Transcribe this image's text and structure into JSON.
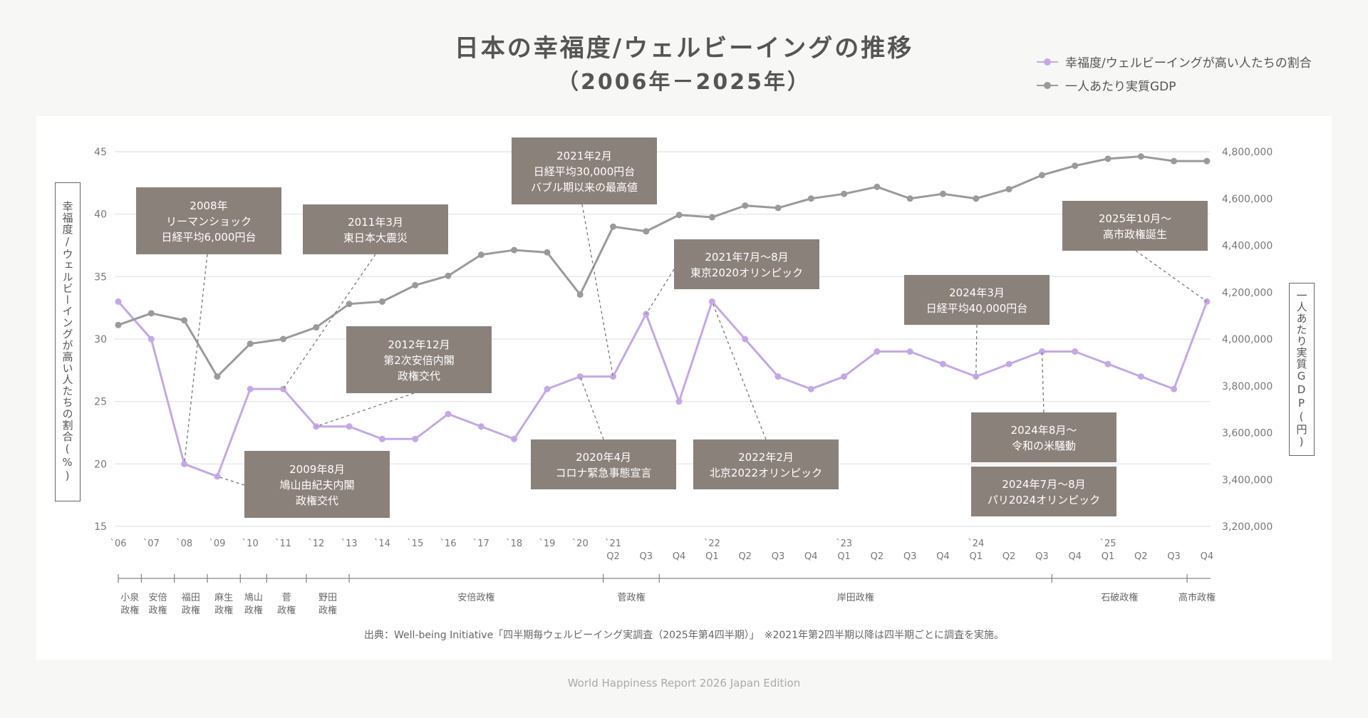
{
  "title": {
    "line1": "日本の幸福度/ウェルビーイングの推移",
    "line2": "（2006年－2025年）"
  },
  "legend": [
    {
      "label": "幸福度/ウェルビーイングが高い人たちの割合",
      "color": "#c4a8e6"
    },
    {
      "label": "一人あたり実質GDP",
      "color": "#9a9a9a"
    }
  ],
  "axis_titles": {
    "left": "幸福度/ウェルビーイングが高い人たちの割合(%)",
    "right": "一人あたり実質GDP(円)"
  },
  "source_note": "出典：Well-being Initiative「四半期毎ウェルビーイング実調査（2025年第4四半期）」　※2021年第2四半期以降は四半期ごとに調査を実施。",
  "footer": "World Happiness Report 2026 Japan Edition",
  "chart_data": {
    "type": "line",
    "categories": [
      {
        "top": "`06",
        "bottom": ""
      },
      {
        "top": "`07",
        "bottom": ""
      },
      {
        "top": "`08",
        "bottom": ""
      },
      {
        "top": "`09",
        "bottom": ""
      },
      {
        "top": "`10",
        "bottom": ""
      },
      {
        "top": "`11",
        "bottom": ""
      },
      {
        "top": "`12",
        "bottom": ""
      },
      {
        "top": "`13",
        "bottom": ""
      },
      {
        "top": "`14",
        "bottom": ""
      },
      {
        "top": "`15",
        "bottom": ""
      },
      {
        "top": "`16",
        "bottom": ""
      },
      {
        "top": "`17",
        "bottom": ""
      },
      {
        "top": "`18",
        "bottom": ""
      },
      {
        "top": "`19",
        "bottom": ""
      },
      {
        "top": "`20",
        "bottom": ""
      },
      {
        "top": "`21",
        "bottom": "Q2"
      },
      {
        "top": "",
        "bottom": "Q3"
      },
      {
        "top": "",
        "bottom": "Q4"
      },
      {
        "top": "`22",
        "bottom": "Q1"
      },
      {
        "top": "",
        "bottom": "Q2"
      },
      {
        "top": "",
        "bottom": "Q3"
      },
      {
        "top": "",
        "bottom": "Q4"
      },
      {
        "top": "`23",
        "bottom": "Q1"
      },
      {
        "top": "",
        "bottom": "Q2"
      },
      {
        "top": "",
        "bottom": "Q3"
      },
      {
        "top": "",
        "bottom": "Q4"
      },
      {
        "top": "`24",
        "bottom": "Q1"
      },
      {
        "top": "",
        "bottom": "Q2"
      },
      {
        "top": "",
        "bottom": "Q3"
      },
      {
        "top": "",
        "bottom": "Q4"
      },
      {
        "top": "`25",
        "bottom": "Q1"
      },
      {
        "top": "",
        "bottom": "Q2"
      },
      {
        "top": "",
        "bottom": "Q3"
      },
      {
        "top": "",
        "bottom": "Q4"
      }
    ],
    "series": [
      {
        "name": "幸福度/ウェルビーイングが高い人たちの割合",
        "axis": "left",
        "color": "#c4a8e6",
        "values": [
          33,
          30,
          20,
          19,
          26,
          26,
          23,
          23,
          22,
          22,
          24,
          23,
          22,
          26,
          27,
          27,
          32,
          25,
          33,
          30,
          27,
          26,
          27,
          29,
          29,
          28,
          27,
          28,
          29,
          29,
          28,
          27,
          26,
          33
        ]
      },
      {
        "name": "一人あたり実質GDP",
        "axis": "right",
        "color": "#9a9a9a",
        "values": [
          4060000,
          4110000,
          4080000,
          3840000,
          3980000,
          4000000,
          4050000,
          4150000,
          4160000,
          4230000,
          4270000,
          4360000,
          4380000,
          4370000,
          4190000,
          4480000,
          4460000,
          4530000,
          4520000,
          4570000,
          4560000,
          4600000,
          4620000,
          4650000,
          4600000,
          4620000,
          4600000,
          4640000,
          4700000,
          4740000,
          4770000,
          4780000,
          4760000,
          4760000
        ]
      }
    ],
    "y_left": {
      "min": 15,
      "max": 45,
      "ticks": [
        "15",
        "20",
        "25",
        "30",
        "35",
        "40",
        "45"
      ]
    },
    "y_right": {
      "min": 3200000,
      "max": 4800000,
      "ticks": [
        "3,200,000",
        "3,400,000",
        "3,600,000",
        "3,800,000",
        "4,000,000",
        "4,200,000",
        "4,400,000",
        "4,600,000",
        "4,800,000"
      ]
    },
    "grid": true,
    "legend_position": "top-right",
    "annotations": [
      {
        "lines": [
          "2008年",
          "リーマンショック",
          "日経平均6,000円台"
        ],
        "target_index": 2,
        "target_series": 0
      },
      {
        "lines": [
          "2011年3月",
          "東日本大震災"
        ],
        "target_index": 5,
        "target_series": 0
      },
      {
        "lines": [
          "2009年8月",
          "鳩山由紀夫内閣",
          "政権交代"
        ],
        "target_index": 3,
        "target_series": 0
      },
      {
        "lines": [
          "2012年12月",
          "第2次安倍内閣",
          "政権交代"
        ],
        "target_index": 6,
        "target_series": 0
      },
      {
        "lines": [
          "2021年2月",
          "日経平均30,000円台",
          "バブル期以来の最高値"
        ],
        "target_index": 15,
        "target_series": 0
      },
      {
        "lines": [
          "2021年7月～8月",
          "東京2020オリンピック"
        ],
        "target_index": 16,
        "target_series": 0
      },
      {
        "lines": [
          "2020年4月",
          "コロナ緊急事態宣言"
        ],
        "target_index": 14,
        "target_series": 0
      },
      {
        "lines": [
          "2022年2月",
          "北京2022オリンピック"
        ],
        "target_index": 18,
        "target_series": 0
      },
      {
        "lines": [
          "2024年3月",
          "日経平均40,000円台"
        ],
        "target_index": 26,
        "target_series": 0
      },
      {
        "lines": [
          "2024年8月～",
          "令和の米騒動"
        ],
        "target_index": 28,
        "target_series": 0
      },
      {
        "lines": [
          "2024年7月～8月",
          "パリ2024オリンピック"
        ],
        "target_index": null,
        "target_series": 0
      },
      {
        "lines": [
          "2025年10月～",
          "高市政権誕生"
        ],
        "target_index": 33,
        "target_series": 0
      }
    ],
    "eras": [
      {
        "lines": [
          "小泉",
          "政権"
        ],
        "start": 0,
        "end": 0.7
      },
      {
        "lines": [
          "安倍",
          "政権"
        ],
        "start": 0.7,
        "end": 1.7
      },
      {
        "lines": [
          "福田",
          "政権"
        ],
        "start": 1.7,
        "end": 2.7
      },
      {
        "lines": [
          "麻生",
          "政権"
        ],
        "start": 2.7,
        "end": 3.7
      },
      {
        "lines": [
          "鳩山",
          "政権"
        ],
        "start": 3.7,
        "end": 4.5
      },
      {
        "lines": [
          "菅",
          "政権"
        ],
        "start": 4.5,
        "end": 5.7
      },
      {
        "lines": [
          "野田",
          "政権"
        ],
        "start": 5.7,
        "end": 7.0
      },
      {
        "lines": [
          "安倍政権"
        ],
        "start": 7.0,
        "end": 14.7
      },
      {
        "lines": [
          "菅政権"
        ],
        "start": 14.7,
        "end": 16.4
      },
      {
        "lines": [
          "岸田政権"
        ],
        "start": 16.4,
        "end": 28.3
      },
      {
        "lines": [
          "石破政権"
        ],
        "start": 28.3,
        "end": 32.4
      },
      {
        "lines": [
          "高市政権"
        ],
        "start": 32.4,
        "end": 33.0
      }
    ]
  }
}
